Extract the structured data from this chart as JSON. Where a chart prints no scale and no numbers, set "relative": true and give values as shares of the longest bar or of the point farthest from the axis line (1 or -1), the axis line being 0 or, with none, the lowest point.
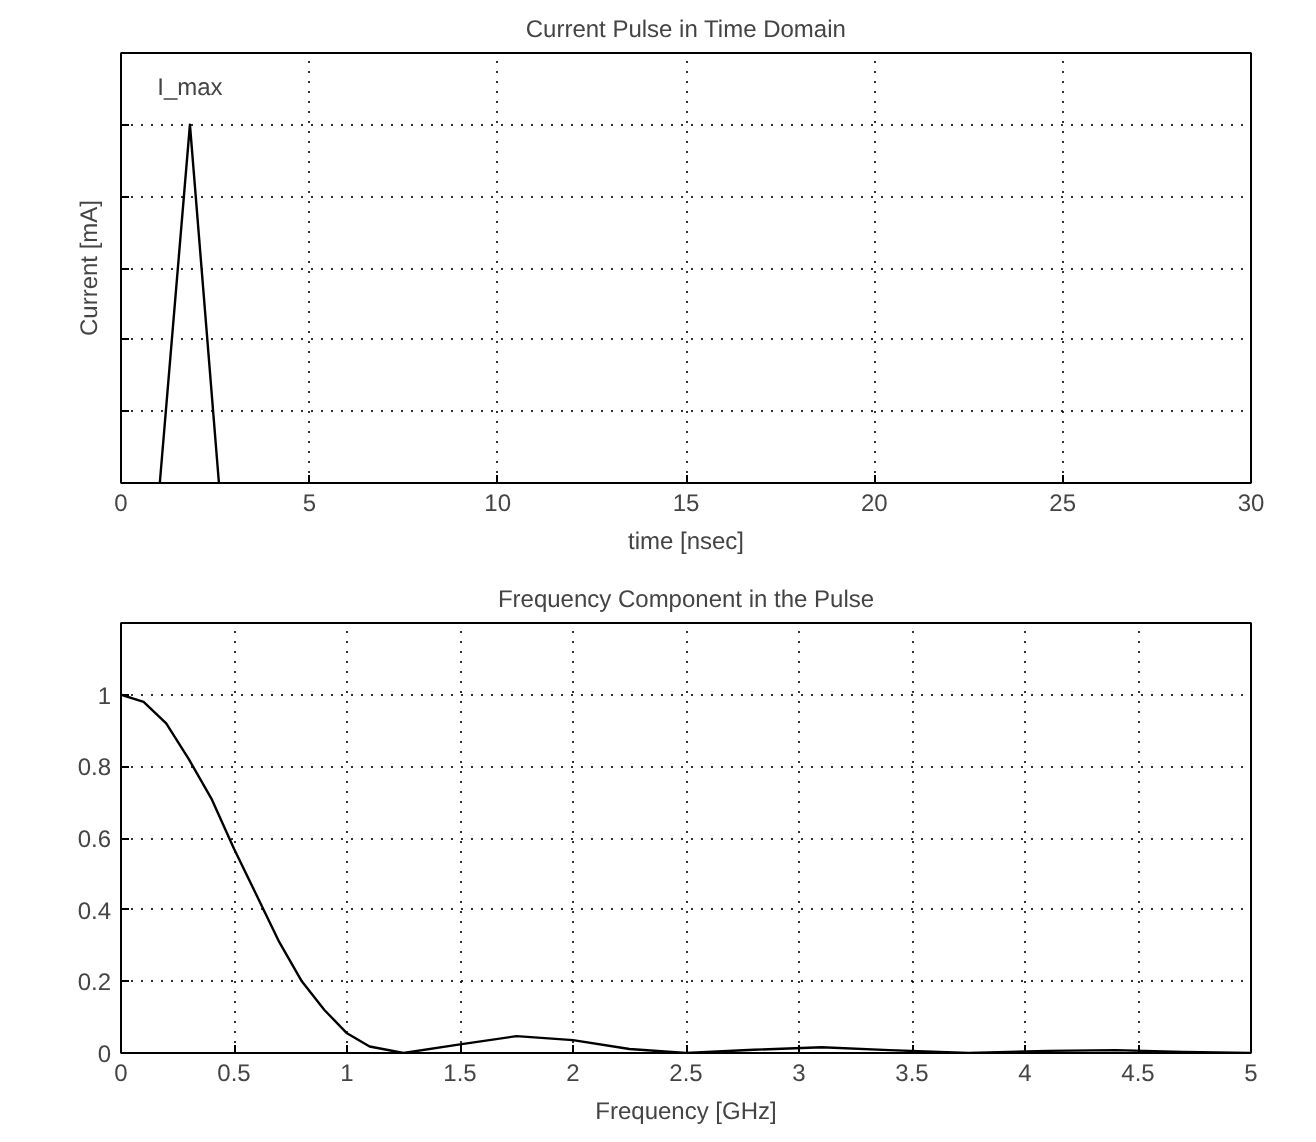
{
  "chart_data": [
    {
      "type": "line",
      "title": "Current Pulse in Time Domain",
      "xlabel": "time [nsec]",
      "ylabel": "Current [mA]",
      "relative": true,
      "x": [
        1.03,
        1.83,
        2.6
      ],
      "xlim": [
        0,
        30
      ],
      "xticks": [
        0,
        5,
        10,
        15,
        20,
        25,
        30
      ],
      "grid": true,
      "annotations": [
        {
          "text": "I_max",
          "x": 1.83,
          "y": 1
        }
      ],
      "series": [
        {
          "color": "#000000",
          "values": [
            0,
            1,
            0
          ]
        }
      ]
    },
    {
      "type": "line",
      "title": "Frequency Component in the Pulse",
      "xlabel": "Frequency [GHz]",
      "xlim": [
        0,
        5
      ],
      "ylim": [
        0,
        1.2
      ],
      "xticks": [
        0,
        0.5,
        1,
        1.5,
        2,
        2.5,
        3,
        3.5,
        4,
        4.5,
        5
      ],
      "yticks": [
        0,
        0.2,
        0.4,
        0.6,
        0.8,
        1
      ],
      "grid": true,
      "series": [
        {
          "color": "#000000",
          "x": [
            0,
            0.1,
            0.2,
            0.3,
            0.4,
            0.5,
            0.6,
            0.7,
            0.8,
            0.9,
            1.0,
            1.1,
            1.25,
            1.5,
            1.75,
            2.0,
            2.25,
            2.5,
            2.8,
            3.1,
            3.4,
            3.75,
            4.1,
            4.4,
            4.7,
            5.0
          ],
          "values": [
            1,
            0.98,
            0.92,
            0.82,
            0.71,
            0.57,
            0.44,
            0.31,
            0.2,
            0.12,
            0.055,
            0.018,
            0,
            0.024,
            0.047,
            0.036,
            0.011,
            0,
            0.009,
            0.016,
            0.008,
            0,
            0.006,
            0.008,
            0.003,
            0
          ]
        }
      ]
    }
  ]
}
